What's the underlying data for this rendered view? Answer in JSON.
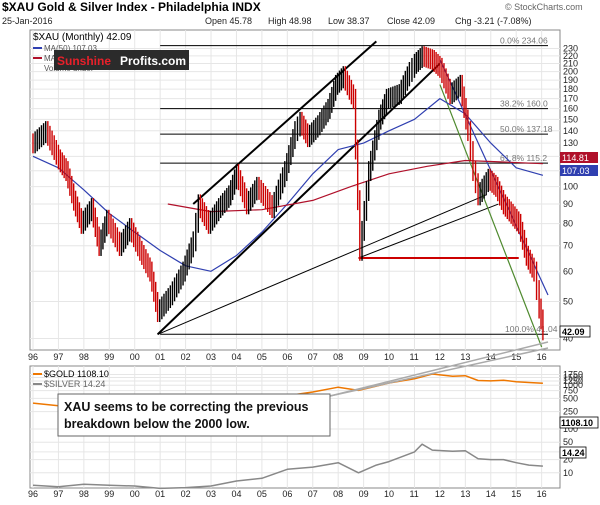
{
  "header": {
    "title": "$XAU Gold & Silver Index - Philadelphia INDX",
    "date": "25-Jan-2016",
    "open": "Open 45.78",
    "high": "High 48.98",
    "low": "Low 38.37",
    "close": "Close 42.09",
    "chg": "Chg -3.21 (-7.08%)",
    "watermark": "© StockCharts.com"
  },
  "legend_top": {
    "series_label": "$XAU (Monthly) 42.09",
    "ma1_label": "MA(50) 107.03",
    "ma2_label": "MA(200) 114.81",
    "volume_label": "Volume undef"
  },
  "logo": {
    "part1": "Sunshine",
    "part2": "Profits.com",
    "colors": {
      "part1": "#d0021b",
      "part2": "#ffffff",
      "bg": "#2b2b2b"
    }
  },
  "annotation": {
    "line1": "XAU seems to be correcting the previous",
    "line2": "breakdown below the 2000 low."
  },
  "legend_bottom": {
    "gold_label": "$GOLD 1108.10",
    "silver_label": "$SILVER 14.24"
  },
  "fib_labels": [
    "0.0% 234.06",
    "38.2% 160.0",
    "50.0% 137.18",
    "61.8% 115.2",
    "100.0% 41.04"
  ],
  "end_tags": {
    "ma200": "114.81",
    "ma50": "107.03",
    "close": "42.09",
    "gold": "1108.10",
    "silver": "14.24"
  },
  "colors": {
    "price_up": "#000000",
    "price_down": "#cc0000",
    "ma50": "#2f3fb0",
    "ma200": "#b0102a",
    "gold": "#ee7700",
    "silver": "#888888",
    "trend_blue": "#2f3fb0",
    "trend_green": "#4f8a2f",
    "support_red": "#cc0000",
    "grid": "#e6e6e6"
  },
  "chart_data": [
    {
      "type": "line",
      "title": "$XAU Gold & Silver Index - Philadelphia INDX",
      "yscale": "log",
      "ylim": [
        38,
        245
      ],
      "y_ticks": [
        40,
        50,
        60,
        70,
        80,
        90,
        100,
        110,
        120,
        130,
        140,
        150,
        160,
        170,
        180,
        190,
        200,
        210,
        220,
        230
      ],
      "x_ticks": [
        "96",
        "97",
        "98",
        "99",
        "00",
        "01",
        "02",
        "03",
        "04",
        "05",
        "06",
        "07",
        "08",
        "09",
        "10",
        "11",
        "12",
        "13",
        "14",
        "15",
        "16"
      ],
      "series": [
        {
          "name": "$XAU (Monthly)",
          "x": [
            1996.0,
            1996.5,
            1997.0,
            1997.3,
            1997.6,
            1997.9,
            1998.3,
            1998.6,
            1998.9,
            1999.4,
            1999.8,
            2000.2,
            2000.6,
            2000.9,
            2001.4,
            2001.9,
            2002.3,
            2002.5,
            2002.9,
            2003.3,
            2003.7,
            2004.0,
            2004.4,
            2004.8,
            2005.4,
            2005.9,
            2006.3,
            2006.5,
            2006.8,
            2007.2,
            2007.6,
            2007.9,
            2008.2,
            2008.6,
            2008.85,
            2009.2,
            2009.6,
            2009.9,
            2010.4,
            2010.8,
            2011.0,
            2011.3,
            2011.7,
            2012.0,
            2012.4,
            2012.8,
            2013.1,
            2013.3,
            2013.5,
            2013.9,
            2014.2,
            2014.5,
            2014.8,
            2015.1,
            2015.4,
            2015.7,
            2015.9,
            2016.05
          ],
          "values": [
            130,
            140,
            118,
            110,
            92,
            80,
            88,
            70,
            82,
            70,
            78,
            68,
            60,
            47,
            52,
            60,
            72,
            90,
            80,
            88,
            95,
            108,
            90,
            100,
            88,
            110,
            140,
            148,
            135,
            145,
            160,
            185,
            195,
            170,
            68,
            110,
            150,
            170,
            175,
            200,
            210,
            220,
            215,
            205,
            175,
            185,
            140,
            110,
            95,
            105,
            100,
            90,
            85,
            80,
            66,
            60,
            48,
            42.09
          ]
        },
        {
          "name": "MA(50)",
          "x": [
            1996.0,
            1997.0,
            1998.0,
            1999.0,
            2000.0,
            2001.0,
            2002.0,
            2003.0,
            2004.0,
            2005.0,
            2006.0,
            2007.0,
            2008.0,
            2009.0,
            2010.0,
            2011.0,
            2012.0,
            2013.0,
            2014.0,
            2015.0,
            2016.05
          ],
          "values": [
            120,
            112,
            98,
            85,
            76,
            68,
            62,
            60,
            66,
            76,
            90,
            108,
            125,
            130,
            140,
            150,
            170,
            155,
            130,
            112,
            107.03
          ]
        },
        {
          "name": "MA(200)",
          "x": [
            2001.3,
            2003.0,
            2005.0,
            2007.0,
            2008.5,
            2010.0,
            2011.5,
            2013.0,
            2014.5,
            2016.05
          ],
          "values": [
            90,
            86,
            87,
            92,
            100,
            108,
            113,
            117,
            116,
            114.81
          ]
        }
      ],
      "fib_levels": [
        234.06,
        160.0,
        137.18,
        115.2,
        41.04
      ]
    },
    {
      "type": "line",
      "yscale": "log",
      "ylim": [
        5,
        2000
      ],
      "y_ticks": [
        10,
        20,
        30,
        50,
        100,
        250,
        500,
        750,
        1000,
        1250,
        1500,
        1750
      ],
      "x_ticks": [
        "96",
        "97",
        "98",
        "99",
        "00",
        "01",
        "02",
        "03",
        "04",
        "05",
        "06",
        "07",
        "08",
        "09",
        "10",
        "11",
        "12",
        "13",
        "14",
        "15",
        "16"
      ],
      "series": [
        {
          "name": "$GOLD",
          "x": [
            1996.0,
            1997.0,
            1998.0,
            1999.0,
            2000.0,
            2001.0,
            2002.0,
            2003.0,
            2004.0,
            2005.0,
            2006.0,
            2007.0,
            2008.0,
            2008.8,
            2009.5,
            2010.0,
            2011.0,
            2011.7,
            2012.5,
            2013.0,
            2013.5,
            2014.0,
            2014.5,
            2015.0,
            2015.5,
            2016.05
          ],
          "values": [
            390,
            340,
            295,
            285,
            285,
            270,
            310,
            360,
            410,
            440,
            580,
            700,
            900,
            760,
            950,
            1120,
            1400,
            1800,
            1600,
            1650,
            1280,
            1250,
            1300,
            1200,
            1150,
            1108.1
          ]
        },
        {
          "name": "$SILVER",
          "x": [
            1996.0,
            1997.0,
            1998.0,
            1999.0,
            2000.0,
            2001.0,
            2002.0,
            2003.0,
            2004.0,
            2005.0,
            2006.0,
            2007.0,
            2008.0,
            2008.8,
            2009.5,
            2010.0,
            2011.0,
            2011.3,
            2011.7,
            2012.5,
            2013.0,
            2013.5,
            2014.0,
            2014.5,
            2015.0,
            2015.5,
            2016.05
          ],
          "values": [
            5.2,
            4.8,
            5.5,
            5.2,
            5.0,
            4.4,
            4.6,
            5.0,
            6.5,
            7.5,
            12,
            13.5,
            17,
            10,
            15,
            18,
            30,
            45,
            33,
            31,
            32,
            21,
            20,
            20,
            17,
            15,
            14.24
          ]
        }
      ]
    }
  ]
}
